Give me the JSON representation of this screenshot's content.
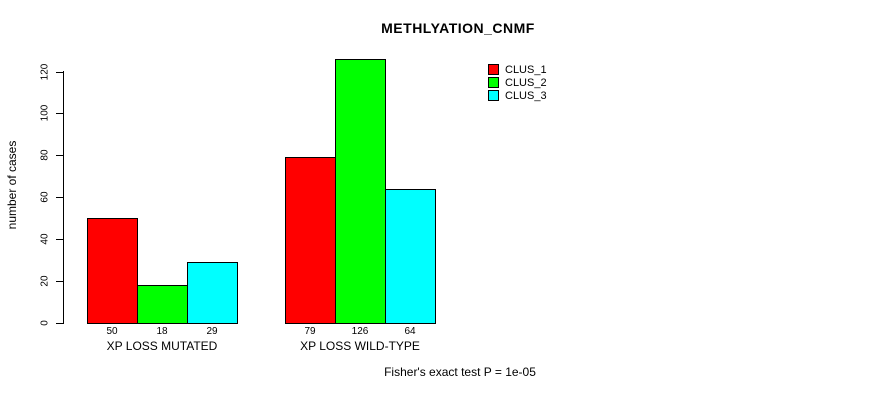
{
  "chart_data": {
    "type": "bar",
    "title": "METHLYATION_CNMF",
    "xlabel": "",
    "ylabel": "number of cases",
    "categories": [
      "XP LOSS MUTATED",
      "XP LOSS WILD-TYPE"
    ],
    "series": [
      {
        "name": "CLUS_1",
        "color": "#FF0000",
        "values": [
          50,
          79
        ]
      },
      {
        "name": "CLUS_2",
        "color": "#00FF00",
        "values": [
          18,
          126
        ]
      },
      {
        "name": "CLUS_3",
        "color": "#00FFFF",
        "values": [
          29,
          64
        ]
      }
    ],
    "yticks": [
      0,
      20,
      40,
      60,
      80,
      100,
      120
    ],
    "ylim": [
      0,
      130
    ],
    "grid": false,
    "legend_position": "top-right",
    "bar_outline_color": "#000000",
    "annotation": "Fisher's exact test P = 1e-05"
  }
}
